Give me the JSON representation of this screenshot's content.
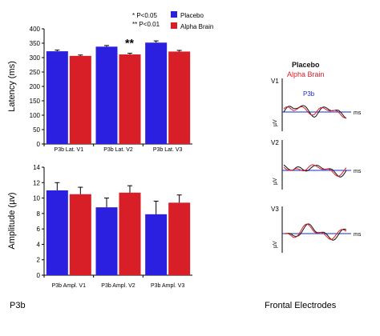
{
  "colors": {
    "placebo": "#2b1fe0",
    "alpha_brain": "#d81e26",
    "axis": "#000000",
    "baseline": "#1a2ad0"
  },
  "legend": {
    "significance": [
      "* P<0.05",
      "** P<0.01"
    ],
    "items": [
      {
        "label": "Placebo",
        "color": "#2b1fe0"
      },
      {
        "label": "Alpha Brain",
        "color": "#d81e26"
      }
    ]
  },
  "labels": {
    "left_caption": "P3b",
    "right_caption": "Frontal Electrodes"
  },
  "chart_data": [
    {
      "type": "bar",
      "ylabel": "Latency (ms)",
      "ylim": [
        0,
        400
      ],
      "yticks": [
        0,
        50,
        100,
        150,
        200,
        250,
        300,
        350,
        400
      ],
      "grid": false,
      "categories": [
        "P3b Lat. V1",
        "P3b Lat. V2",
        "P3b Lat. V3"
      ],
      "series": [
        {
          "name": "Placebo",
          "values": [
            322,
            338,
            352
          ],
          "errors": [
            4,
            4,
            6
          ]
        },
        {
          "name": "Alpha Brain",
          "values": [
            306,
            311,
            321
          ],
          "errors": [
            3,
            4,
            4
          ]
        }
      ],
      "annotations": [
        {
          "category": "P3b Lat. V2",
          "text": "**"
        }
      ]
    },
    {
      "type": "bar",
      "ylabel": "Amplitude (µv)",
      "ylim": [
        0,
        14
      ],
      "yticks": [
        0,
        2,
        4,
        6,
        8,
        10,
        12,
        14
      ],
      "grid": false,
      "categories": [
        "P3b Ampl. V1",
        "P3b Ampl. V2",
        "P3b Ampl. V3"
      ],
      "series": [
        {
          "name": "Placebo",
          "values": [
            11.0,
            8.8,
            7.9
          ],
          "errors": [
            1.0,
            1.2,
            1.7
          ]
        },
        {
          "name": "Alpha Brain",
          "values": [
            10.5,
            10.7,
            9.4
          ],
          "errors": [
            0.9,
            0.9,
            1.0
          ]
        }
      ]
    }
  ],
  "erp": {
    "legend": [
      "Placebo",
      "Alpha Brain"
    ],
    "panels": [
      {
        "label": "V1",
        "peak_label": "P3b",
        "y_unit": "µV",
        "x_unit": "ms"
      },
      {
        "label": "V2",
        "y_unit": "µV",
        "x_unit": "ms"
      },
      {
        "label": "V3",
        "y_unit": "µV",
        "x_unit": "ms"
      }
    ]
  }
}
